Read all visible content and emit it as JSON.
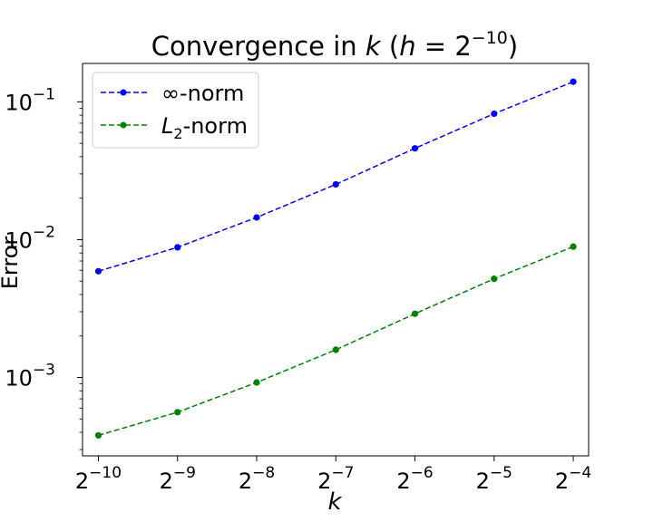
{
  "chart_data": {
    "type": "line",
    "title": {
      "prefix": "Convergence in ",
      "var_k": "k",
      "paren_open": " (",
      "var_h": "h",
      "eq": " = 2",
      "exp": "−10",
      "paren_close": ")"
    },
    "xlabel": "k",
    "ylabel": "Error",
    "x_scale": "log2",
    "y_scale": "log10",
    "x": [
      0.0009765625,
      0.001953125,
      0.00390625,
      0.0078125,
      0.015625,
      0.03125,
      0.0625
    ],
    "x_ticks": [
      {
        "base": "2",
        "exp": "−10"
      },
      {
        "base": "2",
        "exp": "−9"
      },
      {
        "base": "2",
        "exp": "−8"
      },
      {
        "base": "2",
        "exp": "−7"
      },
      {
        "base": "2",
        "exp": "−6"
      },
      {
        "base": "2",
        "exp": "−5"
      },
      {
        "base": "2",
        "exp": "−4"
      }
    ],
    "y_ticks": [
      {
        "base": "10",
        "exp": "−1",
        "value": 0.1
      },
      {
        "base": "10",
        "exp": "−2",
        "value": 0.01
      },
      {
        "base": "10",
        "exp": "−3",
        "value": 0.001
      }
    ],
    "xlim": [
      0.00085,
      0.0715
    ],
    "ylim": [
      0.00027,
      0.19
    ],
    "grid": false,
    "legend_position": "top-left",
    "series": [
      {
        "name": "∞-norm",
        "color": "#0000ff",
        "style": "dashed",
        "marker": "circle",
        "values": [
          0.0059,
          0.0088,
          0.0145,
          0.0252,
          0.046,
          0.082,
          0.14
        ]
      },
      {
        "name_main": "L",
        "name_sub": "2",
        "name_rest": "-norm",
        "color": "#008000",
        "style": "dashed",
        "marker": "circle",
        "values": [
          0.00038,
          0.00056,
          0.00092,
          0.00159,
          0.0029,
          0.0052,
          0.0089
        ]
      }
    ]
  }
}
